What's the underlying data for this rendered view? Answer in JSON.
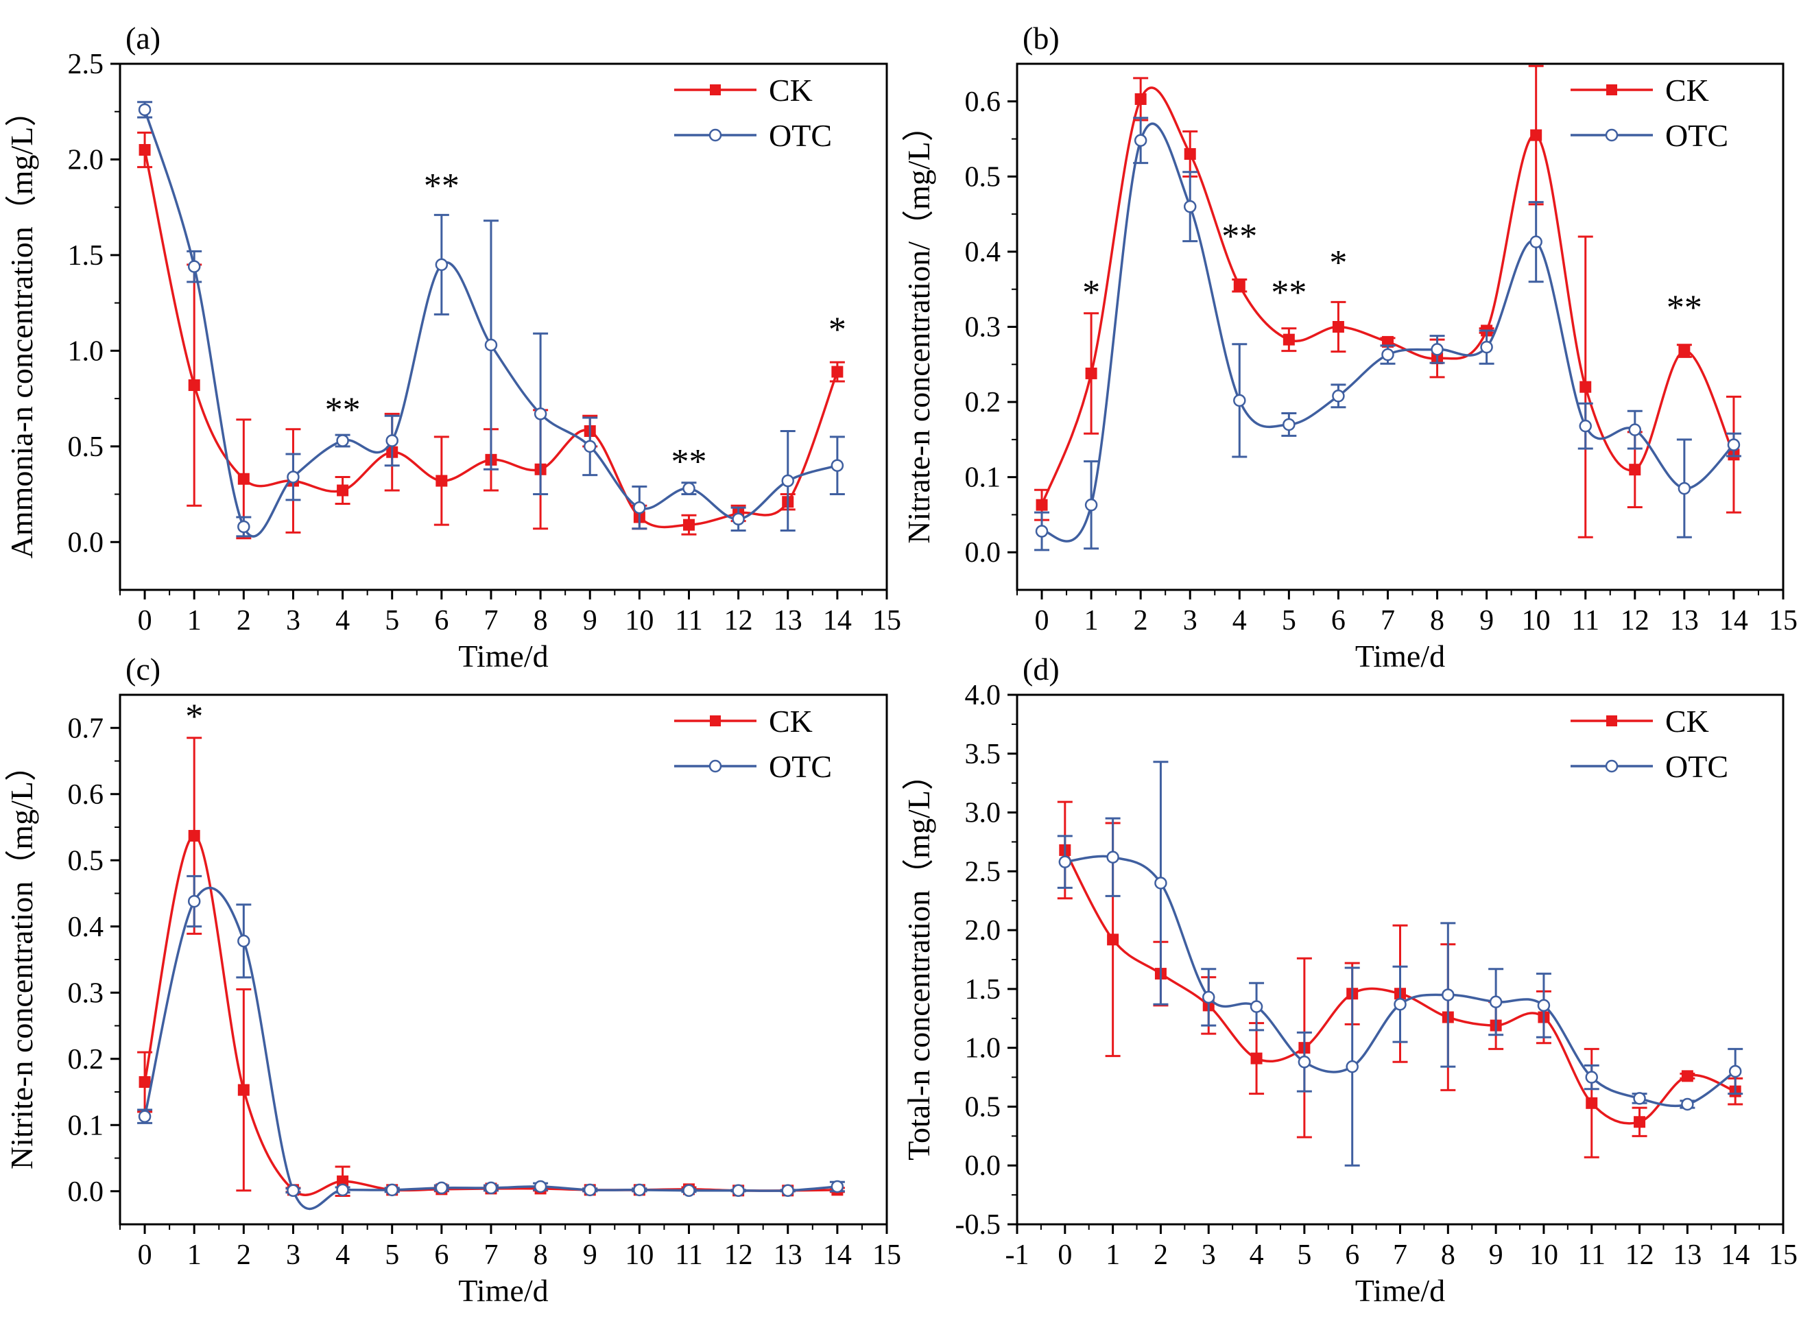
{
  "colors": {
    "ck": "#e8191c",
    "otc": "#3f5fa0",
    "axis": "#000000"
  },
  "chart_data": [
    {
      "type": "line",
      "panel_label": "(a)",
      "xlabel": "Time/d",
      "ylabel": "Ammonia-n concentration（mg/L）",
      "xlim": [
        -0.5,
        15
      ],
      "ylim": [
        -0.25,
        2.5
      ],
      "xticks": [
        "0",
        "1",
        "2",
        "3",
        "4",
        "5",
        "6",
        "7",
        "8",
        "9",
        "10",
        "11",
        "12",
        "13",
        "14",
        "15"
      ],
      "yticks": [
        "0.0",
        "0.5",
        "1.0",
        "1.5",
        "2.0",
        "2.5"
      ],
      "ytick_values": [
        0,
        0.5,
        1.0,
        1.5,
        2.0,
        2.5
      ],
      "legend_position": "top-right",
      "x": [
        0,
        1,
        2,
        3,
        4,
        5,
        6,
        7,
        8,
        9,
        10,
        11,
        12,
        13,
        14
      ],
      "series": [
        {
          "name": "CK",
          "marker": "square",
          "values": [
            2.05,
            0.82,
            0.33,
            0.32,
            0.27,
            0.47,
            0.32,
            0.43,
            0.38,
            0.58,
            0.13,
            0.09,
            0.15,
            0.21,
            0.89
          ],
          "errors": [
            0.09,
            0.63,
            0.31,
            0.27,
            0.07,
            0.2,
            0.23,
            0.16,
            0.31,
            0.08,
            0.06,
            0.05,
            0.04,
            0.04,
            0.05
          ]
        },
        {
          "name": "OTC",
          "marker": "circle",
          "values": [
            2.26,
            1.44,
            0.08,
            0.34,
            0.53,
            0.53,
            1.45,
            1.03,
            0.67,
            0.5,
            0.18,
            0.28,
            0.12,
            0.32,
            0.4
          ],
          "errors": [
            0.04,
            0.08,
            0.05,
            0.12,
            0.03,
            0.13,
            0.26,
            0.65,
            0.42,
            0.15,
            0.11,
            0.03,
            0.06,
            0.26,
            0.15
          ]
        }
      ],
      "annotations": [
        {
          "x": 4,
          "y": 0.63,
          "text": "**"
        },
        {
          "x": 6,
          "y": 1.8,
          "text": "**"
        },
        {
          "x": 11,
          "y": 0.36,
          "text": "**"
        },
        {
          "x": 14,
          "y": 1.05,
          "text": "*"
        }
      ]
    },
    {
      "type": "line",
      "panel_label": "(b)",
      "xlabel": "Time/d",
      "ylabel": "Nitrate-n concentration/（mg/L）",
      "xlim": [
        -0.5,
        15
      ],
      "ylim": [
        -0.05,
        0.65
      ],
      "xticks": [
        "0",
        "1",
        "2",
        "3",
        "4",
        "5",
        "6",
        "7",
        "8",
        "9",
        "10",
        "11",
        "12",
        "13",
        "14",
        "15"
      ],
      "yticks": [
        "0.0",
        "0.1",
        "0.2",
        "0.3",
        "0.4",
        "0.5",
        "0.6"
      ],
      "ytick_values": [
        0,
        0.1,
        0.2,
        0.3,
        0.4,
        0.5,
        0.6
      ],
      "legend_position": "top-right",
      "x": [
        0,
        1,
        2,
        3,
        4,
        5,
        6,
        7,
        8,
        9,
        10,
        11,
        12,
        13,
        14
      ],
      "series": [
        {
          "name": "CK",
          "marker": "square",
          "values": [
            0.063,
            0.238,
            0.603,
            0.53,
            0.355,
            0.283,
            0.3,
            0.28,
            0.258,
            0.295,
            0.555,
            0.22,
            0.11,
            0.268,
            0.13
          ],
          "errors": [
            0.02,
            0.08,
            0.028,
            0.03,
            0.008,
            0.015,
            0.033,
            0.005,
            0.025,
            0.003,
            0.092,
            0.2,
            0.05,
            0.008,
            0.077
          ]
        },
        {
          "name": "OTC",
          "marker": "circle",
          "values": [
            0.028,
            0.063,
            0.548,
            0.46,
            0.202,
            0.17,
            0.208,
            0.263,
            0.27,
            0.273,
            0.413,
            0.168,
            0.163,
            0.085,
            0.143
          ],
          "errors": [
            0.025,
            0.058,
            0.03,
            0.046,
            0.075,
            0.015,
            0.015,
            0.012,
            0.018,
            0.022,
            0.053,
            0.03,
            0.025,
            0.065,
            0.015
          ]
        }
      ],
      "annotations": [
        {
          "x": 1,
          "y": 0.33,
          "text": "*"
        },
        {
          "x": 4,
          "y": 0.405,
          "text": "**"
        },
        {
          "x": 5,
          "y": 0.33,
          "text": "**"
        },
        {
          "x": 6,
          "y": 0.37,
          "text": "*"
        },
        {
          "x": 13,
          "y": 0.31,
          "text": "**"
        }
      ]
    },
    {
      "type": "line",
      "panel_label": "(c)",
      "xlabel": "Time/d",
      "ylabel": "Nitrite-n concentration（mg/L）",
      "xlim": [
        -0.5,
        15
      ],
      "ylim": [
        -0.05,
        0.75
      ],
      "xticks": [
        "0",
        "1",
        "2",
        "3",
        "4",
        "5",
        "6",
        "7",
        "8",
        "9",
        "10",
        "11",
        "12",
        "13",
        "14",
        "15"
      ],
      "yticks": [
        "0.0",
        "0.1",
        "0.2",
        "0.3",
        "0.4",
        "0.5",
        "0.6",
        "0.7"
      ],
      "ytick_values": [
        0,
        0.1,
        0.2,
        0.3,
        0.4,
        0.5,
        0.6,
        0.7
      ],
      "legend_position": "top-right",
      "x": [
        0,
        1,
        2,
        3,
        4,
        5,
        6,
        7,
        8,
        9,
        10,
        11,
        12,
        13,
        14
      ],
      "series": [
        {
          "name": "CK",
          "marker": "square",
          "values": [
            0.165,
            0.537,
            0.153,
            0.002,
            0.015,
            0.002,
            0.003,
            0.004,
            0.004,
            0.002,
            0.002,
            0.003,
            0.001,
            0.001,
            0.002
          ],
          "errors": [
            0.045,
            0.148,
            0.152,
            0.003,
            0.022,
            0.002,
            0.003,
            0.003,
            0.003,
            0.002,
            0.002,
            0.003,
            0.001,
            0.001,
            0.003
          ]
        },
        {
          "name": "OTC",
          "marker": "circle",
          "values": [
            0.113,
            0.438,
            0.378,
            0.001,
            0.002,
            0.002,
            0.005,
            0.005,
            0.007,
            0.002,
            0.002,
            0.001,
            0.001,
            0.001,
            0.007
          ],
          "errors": [
            0.01,
            0.038,
            0.055,
            0.003,
            0.004,
            0.003,
            0.004,
            0.004,
            0.005,
            0.002,
            0.002,
            0.002,
            0.001,
            0.001,
            0.007
          ]
        }
      ],
      "annotations": [
        {
          "x": 1,
          "y": 0.7,
          "text": "*"
        }
      ]
    },
    {
      "type": "line",
      "panel_label": "(d)",
      "xlabel": "Time/d",
      "ylabel": "Total-n concentration（mg/L）",
      "xlim": [
        -1,
        15
      ],
      "ylim": [
        -0.5,
        4.0
      ],
      "xticks": [
        "-1",
        "0",
        "1",
        "2",
        "3",
        "4",
        "5",
        "6",
        "7",
        "8",
        "9",
        "10",
        "11",
        "12",
        "13",
        "14",
        "15"
      ],
      "yticks": [
        "-0.5",
        "0.0",
        "0.5",
        "1.0",
        "1.5",
        "2.0",
        "2.5",
        "3.0",
        "3.5",
        "4.0"
      ],
      "ytick_values": [
        -0.5,
        0,
        0.5,
        1.0,
        1.5,
        2.0,
        2.5,
        3.0,
        3.5,
        4.0
      ],
      "legend_position": "top-right",
      "x": [
        0,
        1,
        2,
        3,
        4,
        5,
        6,
        7,
        8,
        9,
        10,
        11,
        12,
        13,
        14
      ],
      "series": [
        {
          "name": "CK",
          "marker": "square",
          "values": [
            2.68,
            1.92,
            1.63,
            1.36,
            0.91,
            1.0,
            1.46,
            1.46,
            1.26,
            1.19,
            1.26,
            0.53,
            0.37,
            0.76,
            0.63
          ],
          "errors": [
            0.41,
            0.99,
            0.27,
            0.24,
            0.3,
            0.76,
            0.26,
            0.58,
            0.62,
            0.2,
            0.22,
            0.46,
            0.12,
            0.02,
            0.11
          ]
        },
        {
          "name": "OTC",
          "marker": "circle",
          "values": [
            2.58,
            2.62,
            2.4,
            1.43,
            1.35,
            0.88,
            0.84,
            1.37,
            1.45,
            1.39,
            1.36,
            0.75,
            0.57,
            0.52,
            0.8
          ],
          "errors": [
            0.22,
            0.33,
            1.03,
            0.24,
            0.2,
            0.25,
            0.84,
            0.32,
            0.61,
            0.28,
            0.27,
            0.1,
            0.04,
            0.03,
            0.19
          ]
        }
      ],
      "annotations": []
    }
  ]
}
